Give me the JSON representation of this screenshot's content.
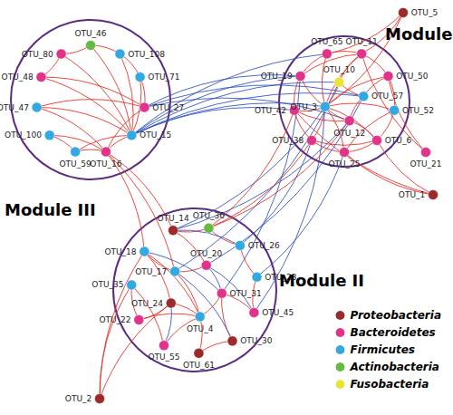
{
  "chart_data": {
    "type": "graph",
    "legend": "lower right",
    "series": [
      {
        "name": "Proteobacteria",
        "color": "#9b2a2a"
      },
      {
        "name": "Bacteroidetes",
        "color": "#e0338a"
      },
      {
        "name": "Firmicutes",
        "color": "#33a9e0"
      },
      {
        "name": "Actinobacteria",
        "color": "#66bb44"
      },
      {
        "name": "Fusobacteria",
        "color": "#e8e633"
      }
    ],
    "modules": [
      {
        "name": "Module I",
        "nodes": [
          "OTU_19",
          "OTU_65",
          "OTU_11",
          "OTU_50",
          "OTU_52",
          "OTU_6",
          "OTU_25",
          "OTU_38",
          "OTU_42",
          "OTU_10",
          "OTU_57",
          "OTU_12",
          "OTU_3"
        ]
      },
      {
        "name": "Module II",
        "nodes": [
          "OTU_14",
          "OTU_36",
          "OTU_26",
          "OTU_23",
          "OTU_45",
          "OTU_30",
          "OTU_61",
          "OTU_55",
          "OTU_22",
          "OTU_35",
          "OTU_18",
          "OTU_20",
          "OTU_31",
          "OTU_4",
          "OTU_24",
          "OTU_17"
        ]
      },
      {
        "name": "Module III",
        "nodes": [
          "OTU_46",
          "OTU_108",
          "OTU_71",
          "OTU_27",
          "OTU_15",
          "OTU_16",
          "OTU_59",
          "OTU_100",
          "OTU_47",
          "OTU_48",
          "OTU_80"
        ]
      }
    ],
    "nodes": [
      {
        "name": "OTU_19",
        "phylum": "Bacteroidetes"
      },
      {
        "name": "OTU_65",
        "phylum": "Bacteroidetes"
      },
      {
        "name": "OTU_11",
        "phylum": "Bacteroidetes"
      },
      {
        "name": "OTU_50",
        "phylum": "Bacteroidetes"
      },
      {
        "name": "OTU_52",
        "phylum": "Firmicutes"
      },
      {
        "name": "OTU_6",
        "phylum": "Bacteroidetes"
      },
      {
        "name": "OTU_25",
        "phylum": "Bacteroidetes"
      },
      {
        "name": "OTU_38",
        "phylum": "Bacteroidetes"
      },
      {
        "name": "OTU_42",
        "phylum": "Bacteroidetes"
      },
      {
        "name": "OTU_10",
        "phylum": "Fusobacteria"
      },
      {
        "name": "OTU_57",
        "phylum": "Firmicutes"
      },
      {
        "name": "OTU_12",
        "phylum": "Bacteroidetes"
      },
      {
        "name": "OTU_3",
        "phylum": "Firmicutes"
      },
      {
        "name": "OTU_14",
        "phylum": "Proteobacteria"
      },
      {
        "name": "OTU_36",
        "phylum": "Actinobacteria"
      },
      {
        "name": "OTU_26",
        "phylum": "Firmicutes"
      },
      {
        "name": "OTU_23",
        "phylum": "Firmicutes"
      },
      {
        "name": "OTU_45",
        "phylum": "Bacteroidetes"
      },
      {
        "name": "OTU_30",
        "phylum": "Proteobacteria"
      },
      {
        "name": "OTU_61",
        "phylum": "Proteobacteria"
      },
      {
        "name": "OTU_55",
        "phylum": "Bacteroidetes"
      },
      {
        "name": "OTU_22",
        "phylum": "Bacteroidetes"
      },
      {
        "name": "OTU_35",
        "phylum": "Firmicutes"
      },
      {
        "name": "OTU_18",
        "phylum": "Firmicutes"
      },
      {
        "name": "OTU_20",
        "phylum": "Bacteroidetes"
      },
      {
        "name": "OTU_31",
        "phylum": "Bacteroidetes"
      },
      {
        "name": "OTU_4",
        "phylum": "Firmicutes"
      },
      {
        "name": "OTU_24",
        "phylum": "Proteobacteria"
      },
      {
        "name": "OTU_17",
        "phylum": "Firmicutes"
      },
      {
        "name": "OTU_46",
        "phylum": "Actinobacteria"
      },
      {
        "name": "OTU_108",
        "phylum": "Firmicutes"
      },
      {
        "name": "OTU_71",
        "phylum": "Firmicutes"
      },
      {
        "name": "OTU_27",
        "phylum": "Bacteroidetes"
      },
      {
        "name": "OTU_15",
        "phylum": "Firmicutes"
      },
      {
        "name": "OTU_16",
        "phylum": "Bacteroidetes"
      },
      {
        "name": "OTU_59",
        "phylum": "Firmicutes"
      },
      {
        "name": "OTU_100",
        "phylum": "Firmicutes"
      },
      {
        "name": "OTU_47",
        "phylum": "Firmicutes"
      },
      {
        "name": "OTU_48",
        "phylum": "Bacteroidetes"
      },
      {
        "name": "OTU_80",
        "phylum": "Bacteroidetes"
      },
      {
        "name": "OTU_5",
        "phylum": "Proteobacteria"
      },
      {
        "name": "OTU_21",
        "phylum": "Bacteroidetes"
      },
      {
        "name": "OTU_1",
        "phylum": "Proteobacteria"
      },
      {
        "name": "OTU_2",
        "phylum": "Proteobacteria"
      }
    ],
    "links": [
      {
        "source": "OTU_46",
        "target": "OTU_108",
        "color": "#e8281e"
      },
      {
        "source": "OTU_46",
        "target": "OTU_80",
        "color": "#e8281e"
      },
      {
        "source": "OTU_46",
        "target": "OTU_15",
        "color": "#e8281e"
      },
      {
        "source": "OTU_108",
        "target": "OTU_71",
        "color": "#e8281e"
      },
      {
        "source": "OTU_108",
        "target": "OTU_15",
        "color": "#e8281e"
      },
      {
        "source": "OTU_71",
        "target": "OTU_15",
        "color": "#e8281e"
      },
      {
        "source": "OTU_71",
        "target": "OTU_27",
        "color": "#e8281e"
      },
      {
        "source": "OTU_80",
        "target": "OTU_15",
        "color": "#e8281e"
      },
      {
        "source": "OTU_80",
        "target": "OTU_48",
        "color": "#e8281e"
      },
      {
        "source": "OTU_48",
        "target": "OTU_15",
        "color": "#e8281e"
      },
      {
        "source": "OTU_48",
        "target": "OTU_27",
        "color": "#e8281e"
      },
      {
        "source": "OTU_47",
        "target": "OTU_15",
        "color": "#e8281e"
      },
      {
        "source": "OTU_47",
        "target": "OTU_27",
        "color": "#e8281e"
      },
      {
        "source": "OTU_47",
        "target": "OTU_16",
        "color": "#e8281e"
      },
      {
        "source": "OTU_100",
        "target": "OTU_16",
        "color": "#e8281e"
      },
      {
        "source": "OTU_100",
        "target": "OTU_59",
        "color": "#e8281e"
      },
      {
        "source": "OTU_59",
        "target": "OTU_16",
        "color": "#e8281e"
      },
      {
        "source": "OTU_59",
        "target": "OTU_15",
        "color": "#e8281e"
      },
      {
        "source": "OTU_16",
        "target": "OTU_15",
        "color": "#e8281e"
      },
      {
        "source": "OTU_16",
        "target": "OTU_27",
        "color": "#e8281e"
      },
      {
        "source": "OTU_15",
        "target": "OTU_19",
        "color": "#2c4fbf"
      },
      {
        "source": "OTU_15",
        "target": "OTU_65",
        "color": "#2c4fbf"
      },
      {
        "source": "OTU_15",
        "target": "OTU_10",
        "color": "#2c4fbf"
      },
      {
        "source": "OTU_15",
        "target": "OTU_57",
        "color": "#2c4fbf"
      },
      {
        "source": "OTU_15",
        "target": "OTU_3",
        "color": "#2c4fbf"
      },
      {
        "source": "OTU_15",
        "target": "OTU_42",
        "color": "#2c4fbf"
      },
      {
        "source": "OTU_27",
        "target": "OTU_19",
        "color": "#2c4fbf"
      },
      {
        "source": "OTU_27",
        "target": "OTU_12",
        "color": "#2c4fbf"
      },
      {
        "source": "OTU_27",
        "target": "OTU_57",
        "color": "#2c4fbf"
      },
      {
        "source": "OTU_16",
        "target": "OTU_14",
        "color": "#e8281e"
      },
      {
        "source": "OTU_16",
        "target": "OTU_17",
        "color": "#e8281e"
      },
      {
        "source": "OTU_16",
        "target": "OTU_18",
        "color": "#e8281e"
      },
      {
        "source": "OTU_19",
        "target": "OTU_65",
        "color": "#e8281e"
      },
      {
        "source": "OTU_65",
        "target": "OTU_11",
        "color": "#e8281e"
      },
      {
        "source": "OTU_11",
        "target": "OTU_50",
        "color": "#e8281e"
      },
      {
        "source": "OTU_50",
        "target": "OTU_52",
        "color": "#e8281e"
      },
      {
        "source": "OTU_52",
        "target": "OTU_6",
        "color": "#e8281e"
      },
      {
        "source": "OTU_6",
        "target": "OTU_25",
        "color": "#e8281e"
      },
      {
        "source": "OTU_25",
        "target": "OTU_38",
        "color": "#e8281e"
      },
      {
        "source": "OTU_38",
        "target": "OTU_42",
        "color": "#e8281e"
      },
      {
        "source": "OTU_42",
        "target": "OTU_19",
        "color": "#e8281e"
      },
      {
        "source": "OTU_3",
        "target": "OTU_19",
        "color": "#e8281e"
      },
      {
        "source": "OTU_3",
        "target": "OTU_65",
        "color": "#e8281e"
      },
      {
        "source": "OTU_3",
        "target": "OTU_11",
        "color": "#e8281e"
      },
      {
        "source": "OTU_3",
        "target": "OTU_50",
        "color": "#e8281e"
      },
      {
        "source": "OTU_3",
        "target": "OTU_52",
        "color": "#e8281e"
      },
      {
        "source": "OTU_3",
        "target": "OTU_6",
        "color": "#e8281e"
      },
      {
        "source": "OTU_3",
        "target": "OTU_25",
        "color": "#e8281e"
      },
      {
        "source": "OTU_3",
        "target": "OTU_38",
        "color": "#e8281e"
      },
      {
        "source": "OTU_3",
        "target": "OTU_42",
        "color": "#e8281e"
      },
      {
        "source": "OTU_12",
        "target": "OTU_57",
        "color": "#e8281e"
      },
      {
        "source": "OTU_57",
        "target": "OTU_10",
        "color": "#e8281e"
      },
      {
        "source": "OTU_10",
        "target": "OTU_3",
        "color": "#e8281e"
      },
      {
        "source": "OTU_12",
        "target": "OTU_3",
        "color": "#e8281e"
      },
      {
        "source": "OTU_12",
        "target": "OTU_6",
        "color": "#e8281e"
      },
      {
        "source": "OTU_57",
        "target": "OTU_50",
        "color": "#e8281e"
      },
      {
        "source": "OTU_10",
        "target": "OTU_11",
        "color": "#e8281e"
      },
      {
        "source": "OTU_12",
        "target": "OTU_42",
        "color": "#e8281e"
      },
      {
        "source": "OTU_19",
        "target": "OTU_11",
        "color": "#e8281e"
      },
      {
        "source": "OTU_6",
        "target": "OTU_38",
        "color": "#e8281e"
      },
      {
        "source": "OTU_25",
        "target": "OTU_52",
        "color": "#e8281e"
      },
      {
        "source": "OTU_5",
        "target": "OTU_65",
        "color": "#e8281e"
      },
      {
        "source": "OTU_5",
        "target": "OTU_11",
        "color": "#e8281e"
      },
      {
        "source": "OTU_5",
        "target": "OTU_3",
        "color": "#e8281e"
      },
      {
        "source": "OTU_21",
        "target": "OTU_11",
        "color": "#e8281e"
      },
      {
        "source": "OTU_21",
        "target": "OTU_50",
        "color": "#e8281e"
      },
      {
        "source": "OTU_1",
        "target": "OTU_6",
        "color": "#e8281e"
      },
      {
        "source": "OTU_1",
        "target": "OTU_25",
        "color": "#e8281e"
      },
      {
        "source": "OTU_1",
        "target": "OTU_42",
        "color": "#e8281e"
      },
      {
        "source": "OTU_2",
        "target": "OTU_35",
        "color": "#e8281e"
      },
      {
        "source": "OTU_2",
        "target": "OTU_24",
        "color": "#e8281e"
      },
      {
        "source": "OTU_2",
        "target": "OTU_18",
        "color": "#e8281e"
      },
      {
        "source": "OTU_12",
        "target": "OTU_14",
        "color": "#2c4fbf"
      },
      {
        "source": "OTU_3",
        "target": "OTU_14",
        "color": "#2c4fbf"
      },
      {
        "source": "OTU_57",
        "target": "OTU_20",
        "color": "#2c4fbf"
      },
      {
        "source": "OTU_10",
        "target": "OTU_17",
        "color": "#2c4fbf"
      },
      {
        "source": "OTU_3",
        "target": "OTU_45",
        "color": "#2c4fbf"
      },
      {
        "source": "OTU_38",
        "target": "OTU_26",
        "color": "#2c4fbf"
      },
      {
        "source": "OTU_25",
        "target": "OTU_23",
        "color": "#2c4fbf"
      },
      {
        "source": "OTU_19",
        "target": "OTU_31",
        "color": "#2c4fbf"
      },
      {
        "source": "OTU_42",
        "target": "OTU_36",
        "color": "#e8281e"
      },
      {
        "source": "OTU_38",
        "target": "OTU_36",
        "color": "#e8281e"
      },
      {
        "source": "OTU_12",
        "target": "OTU_36",
        "color": "#e8281e"
      },
      {
        "source": "OTU_14",
        "target": "OTU_20",
        "color": "#e8281e"
      },
      {
        "source": "OTU_20",
        "target": "OTU_17",
        "color": "#e8281e"
      },
      {
        "source": "OTU_17",
        "target": "OTU_18",
        "color": "#e8281e"
      },
      {
        "source": "OTU_18",
        "target": "OTU_24",
        "color": "#e8281e"
      },
      {
        "source": "OTU_24",
        "target": "OTU_22",
        "color": "#e8281e"
      },
      {
        "source": "OTU_22",
        "target": "OTU_35",
        "color": "#e8281e"
      },
      {
        "source": "OTU_35",
        "target": "OTU_55",
        "color": "#e8281e"
      },
      {
        "source": "OTU_55",
        "target": "OTU_4",
        "color": "#e8281e"
      },
      {
        "source": "OTU_4",
        "target": "OTU_61",
        "color": "#e8281e"
      },
      {
        "source": "OTU_61",
        "target": "OTU_30",
        "color": "#e8281e"
      },
      {
        "source": "OTU_30",
        "target": "OTU_31",
        "color": "#e8281e"
      },
      {
        "source": "OTU_31",
        "target": "OTU_45",
        "color": "#e8281e"
      },
      {
        "source": "OTU_45",
        "target": "OTU_23",
        "color": "#e8281e"
      },
      {
        "source": "OTU_23",
        "target": "OTU_26",
        "color": "#e8281e"
      },
      {
        "source": "OTU_26",
        "target": "OTU_36",
        "color": "#e8281e"
      },
      {
        "source": "OTU_36",
        "target": "OTU_14",
        "color": "#e8281e"
      },
      {
        "source": "OTU_17",
        "target": "OTU_4",
        "color": "#e8281e"
      },
      {
        "source": "OTU_18",
        "target": "OTU_4",
        "color": "#e8281e"
      },
      {
        "source": "OTU_24",
        "target": "OTU_4",
        "color": "#e8281e"
      },
      {
        "source": "OTU_22",
        "target": "OTU_4",
        "color": "#e8281e"
      },
      {
        "source": "OTU_31",
        "target": "OTU_4",
        "color": "#e8281e"
      },
      {
        "source": "OTU_20",
        "target": "OTU_45",
        "color": "#2c4fbf"
      },
      {
        "source": "OTU_18",
        "target": "OTU_31",
        "color": "#2c4fbf"
      },
      {
        "source": "OTU_17",
        "target": "OTU_30",
        "color": "#2c4fbf"
      },
      {
        "source": "OTU_24",
        "target": "OTU_55",
        "color": "#2c4fbf"
      },
      {
        "source": "OTU_14",
        "target": "OTU_26",
        "color": "#2c4fbf"
      },
      {
        "source": "OTU_20",
        "target": "OTU_31",
        "color": "#2c4fbf"
      }
    ]
  }
}
